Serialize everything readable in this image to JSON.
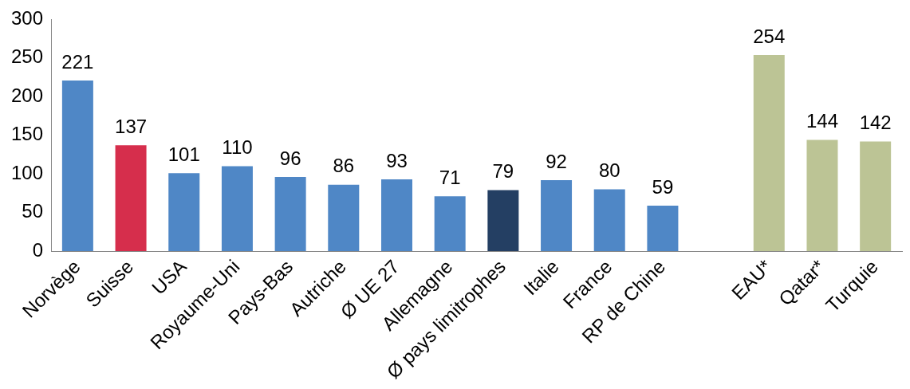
{
  "chart_data": {
    "type": "bar",
    "categories": [
      "Norvège",
      "Suisse",
      "USA",
      "Royaume-Uni",
      "Pays-Bas",
      "Autriche",
      "Ø UE 27",
      "Allemagne",
      "Ø pays limitrophes",
      "Italie",
      "France",
      "RP de Chine",
      null,
      "EAU*",
      "Qatar*",
      "Turquie"
    ],
    "values": [
      221,
      137,
      101,
      110,
      96,
      86,
      93,
      71,
      79,
      92,
      80,
      59,
      null,
      254,
      144,
      142
    ],
    "colors": [
      "#4f87c6",
      "#d62e4c",
      "#4f87c6",
      "#4f87c6",
      "#4f87c6",
      "#4f87c6",
      "#4f87c6",
      "#4f87c6",
      "#243f63",
      "#4f87c6",
      "#4f87c6",
      "#4f87c6",
      "#4f87c6",
      "#bcc495",
      "#bcc495",
      "#bcc495"
    ],
    "ylim": [
      0,
      300
    ],
    "yticks": [
      0,
      50,
      100,
      150,
      200,
      250,
      300
    ],
    "grid": false,
    "legend": false,
    "data_labels": true
  }
}
